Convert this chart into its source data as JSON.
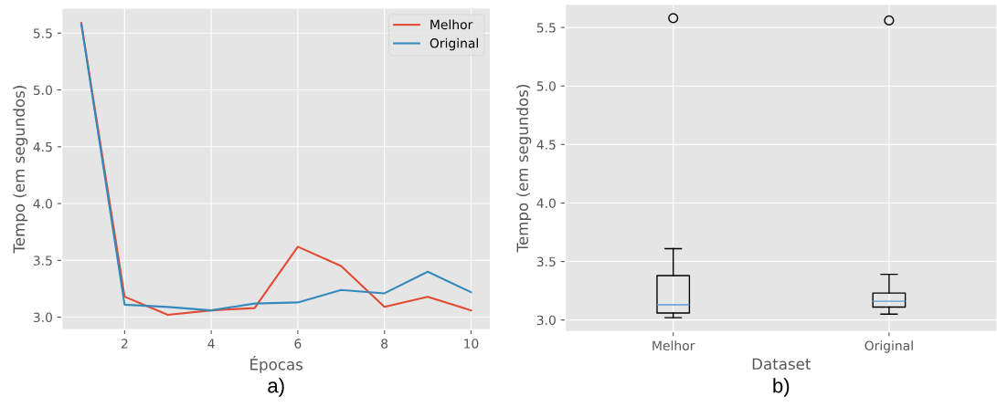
{
  "chart_data": [
    {
      "type": "line",
      "xlabel": "Épocas",
      "ylabel": "Tempo (em segundos)",
      "annotations": [
        "a)"
      ],
      "x": [
        1,
        2,
        3,
        4,
        5,
        6,
        7,
        8,
        9,
        10
      ],
      "series": [
        {
          "name": "Melhor",
          "color": "#e24a33",
          "values": [
            5.59,
            3.18,
            3.02,
            3.06,
            3.08,
            3.62,
            3.45,
            3.09,
            3.18,
            3.06
          ]
        },
        {
          "name": "Original",
          "color": "#348abd",
          "values": [
            5.58,
            3.11,
            3.09,
            3.06,
            3.12,
            3.13,
            3.24,
            3.21,
            3.4,
            3.22
          ]
        }
      ],
      "xlim": [
        0.55,
        10.45
      ],
      "xticks": [
        2,
        4,
        6,
        8,
        10
      ],
      "ylim": [
        2.89,
        5.72
      ],
      "yticks": [
        {
          "value": 3,
          "label": "3.0"
        },
        3.5,
        {
          "value": 4,
          "label": "4.0"
        },
        4.5,
        {
          "value": 5,
          "label": "5.0"
        },
        5.5
      ],
      "grid": true,
      "legend": "top right"
    },
    {
      "type": "box",
      "xlabel": "Dataset",
      "ylabel": "Tempo (em segundos)",
      "annotations": [
        "b)"
      ],
      "categories": [
        "Melhor",
        "Original"
      ],
      "boxes": [
        {
          "low": 3.02,
          "q1": 3.06,
          "median": 3.13,
          "q3": 3.38,
          "high": 3.61,
          "outliers": [
            5.58
          ]
        },
        {
          "low": 3.05,
          "q1": 3.11,
          "median": 3.16,
          "q3": 3.23,
          "high": 3.39,
          "outliers": [
            5.56
          ]
        }
      ],
      "ylim": [
        2.9,
        5.7
      ],
      "yticks": [
        {
          "value": 3,
          "label": "3.0"
        },
        3.5,
        {
          "value": 4,
          "label": "4.0"
        },
        4.5,
        {
          "value": 5,
          "label": "5.0"
        },
        5.5
      ],
      "grid": true
    }
  ]
}
